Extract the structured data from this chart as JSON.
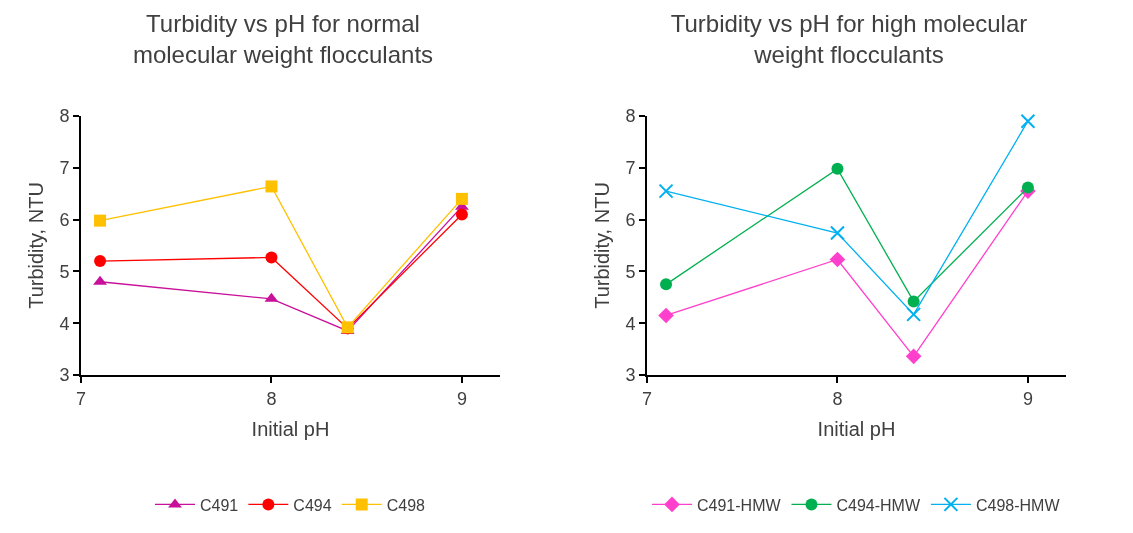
{
  "chart_data": [
    {
      "type": "line",
      "title": "Turbidity vs pH for normal molecular weight flocculants",
      "xlabel": "Initial pH",
      "ylabel": "Turbidity, NTU",
      "x": [
        7.1,
        8,
        8.4,
        9
      ],
      "xlim": [
        7,
        9.2
      ],
      "xticks": [
        7,
        8,
        9
      ],
      "ylim": [
        3,
        8
      ],
      "yticks": [
        3,
        4,
        5,
        6,
        7,
        8
      ],
      "grid": false,
      "legend": "bottom",
      "series": [
        {
          "name": "C491",
          "color": "#c8109a",
          "marker": "triangle",
          "values": [
            4.8,
            4.47,
            3.85,
            6.25
          ]
        },
        {
          "name": "C494",
          "color": "#ff0000",
          "marker": "circle",
          "values": [
            5.2,
            5.27,
            3.9,
            6.1
          ]
        },
        {
          "name": "C498",
          "color": "#ffc000",
          "marker": "square",
          "values": [
            5.98,
            6.64,
            3.92,
            6.4
          ]
        }
      ]
    },
    {
      "type": "line",
      "title": "Turbidity vs pH for high molecular weight flocculants",
      "xlabel": "Initial pH",
      "ylabel": "Turbidity, NTU",
      "x": [
        7.1,
        8,
        8.4,
        9
      ],
      "xlim": [
        7,
        9.2
      ],
      "xticks": [
        7,
        8,
        9
      ],
      "ylim": [
        3,
        8
      ],
      "yticks": [
        3,
        4,
        5,
        6,
        7,
        8
      ],
      "grid": false,
      "legend": "bottom",
      "series": [
        {
          "name": "C491-HMW",
          "color": "#ff40cc",
          "marker": "diamond",
          "values": [
            4.15,
            5.23,
            3.36,
            6.55
          ]
        },
        {
          "name": "C494-HMW",
          "color": "#00b050",
          "marker": "circle",
          "values": [
            4.75,
            6.98,
            4.42,
            6.62
          ]
        },
        {
          "name": "C498-HMW",
          "color": "#00b0f0",
          "marker": "cross",
          "values": [
            6.55,
            5.74,
            4.17,
            7.9
          ]
        }
      ]
    }
  ]
}
